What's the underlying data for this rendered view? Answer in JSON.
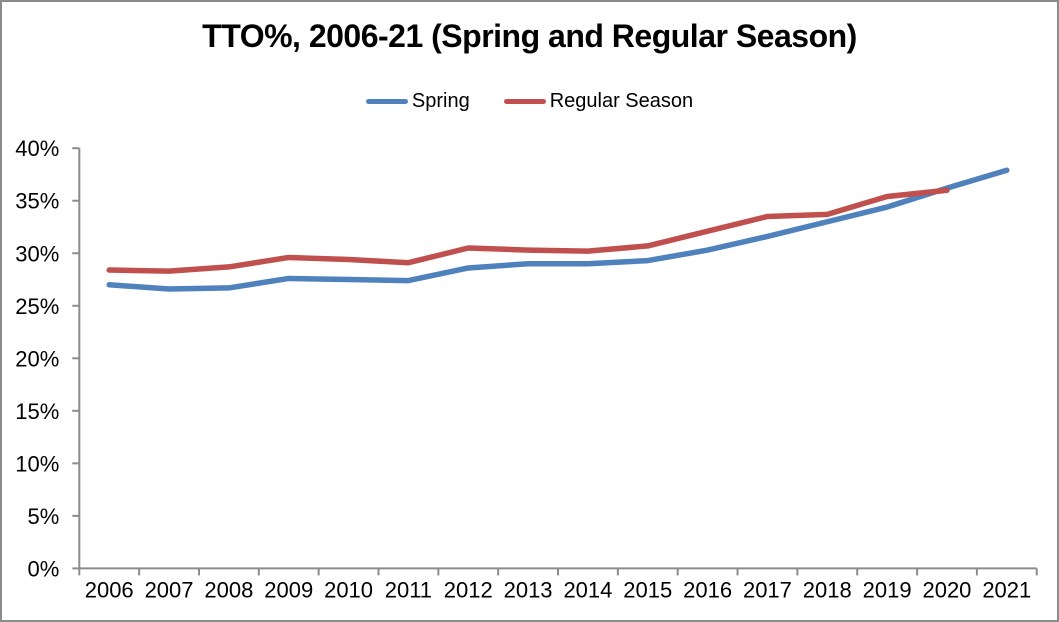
{
  "window": {
    "background": "#ffffff",
    "border_color": "#8b8b8b"
  },
  "chart_data": {
    "type": "line",
    "title": "TTO%, 2006-21 (Spring and Regular Season)",
    "xlabel": "",
    "ylabel": "",
    "categories": [
      "2006",
      "2007",
      "2008",
      "2009",
      "2010",
      "2011",
      "2012",
      "2013",
      "2014",
      "2015",
      "2016",
      "2017",
      "2018",
      "2019",
      "2020",
      "2021"
    ],
    "series": [
      {
        "name": "Spring",
        "color": "#4f81bd",
        "values": [
          27.0,
          26.6,
          26.7,
          27.6,
          27.5,
          27.4,
          28.6,
          29.0,
          29.0,
          29.3,
          30.3,
          31.6,
          33.0,
          34.4,
          36.2,
          37.9
        ]
      },
      {
        "name": "Regular Season",
        "color": "#c0504d",
        "values": [
          28.4,
          28.3,
          28.7,
          29.6,
          29.4,
          29.1,
          30.5,
          30.3,
          30.2,
          30.7,
          32.1,
          33.5,
          33.7,
          35.4,
          36.0
        ]
      }
    ],
    "ylim": [
      0,
      40
    ],
    "y_tick_step": 5,
    "y_tick_labels": [
      "0%",
      "5%",
      "10%",
      "15%",
      "20%",
      "25%",
      "30%",
      "35%",
      "40%"
    ],
    "grid": false,
    "legend_position": "top",
    "axis_color": "#8c8c8c",
    "text_color": "#000000",
    "line_width": 5.5
  }
}
